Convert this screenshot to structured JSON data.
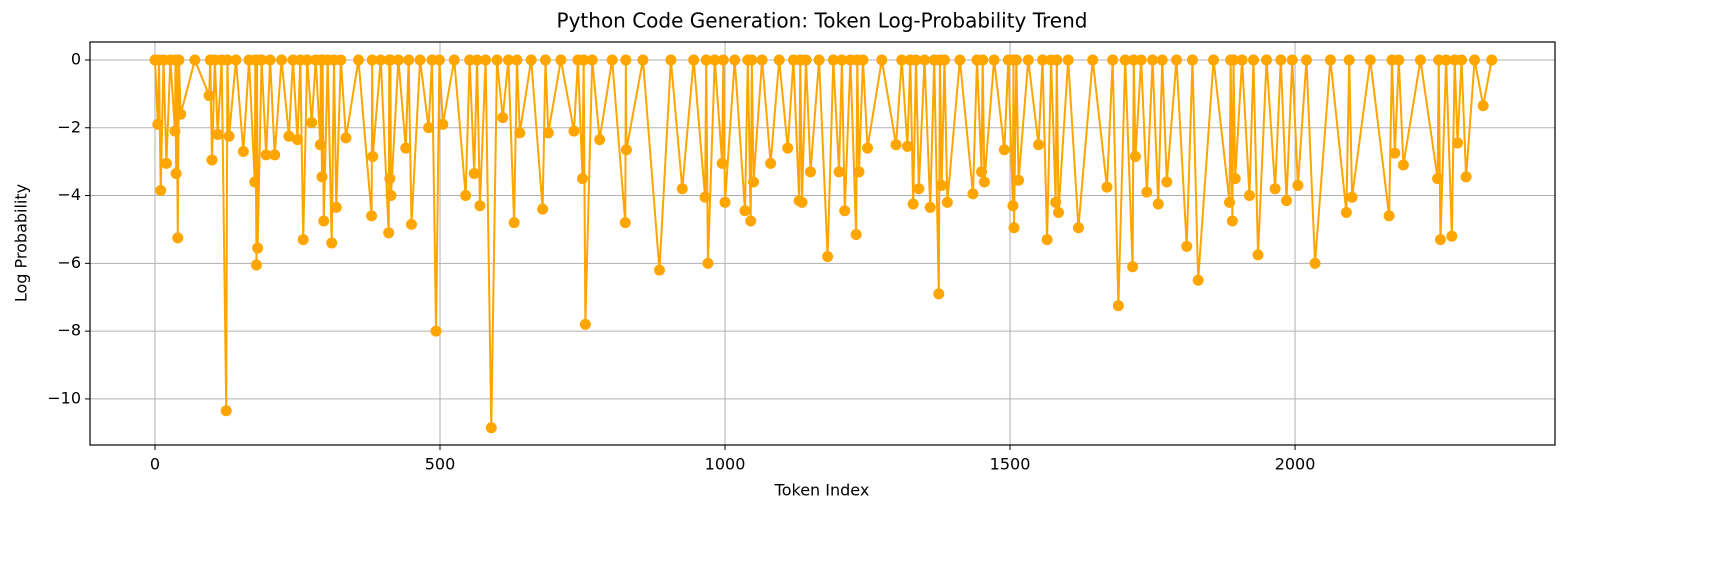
{
  "chart_data": {
    "type": "line",
    "title": "Python Code Generation: Token Log-Probability Trend",
    "xlabel": "Token Index",
    "ylabel": "Log Probability",
    "xlim": [
      -114,
      2456
    ],
    "ylim": [
      -11.36,
      0.53
    ],
    "xticks": [
      0,
      500,
      1000,
      1500,
      2000
    ],
    "yticks": [
      {
        "value": -10,
        "label": "−10"
      },
      {
        "value": -8,
        "label": "−8"
      },
      {
        "value": -6,
        "label": "−6"
      },
      {
        "value": -4,
        "label": "−4"
      },
      {
        "value": -2,
        "label": "−2"
      },
      0
    ],
    "grid": true,
    "markers": true,
    "series": [
      {
        "color": "#ffa500",
        "x": [
          0,
          5,
          7,
          10,
          15,
          20,
          27,
          35,
          36,
          37,
          38,
          40,
          42,
          45,
          70,
          95,
          97,
          100,
          105,
          110,
          117,
          125,
          127,
          130,
          142,
          155,
          165,
          175,
          176,
          178,
          179,
          180,
          187,
          195,
          202,
          210,
          222,
          235,
          242,
          250,
          255,
          260,
          267,
          275,
          282,
          290,
          291,
          293,
          294,
          296,
          303,
          310,
          314,
          318,
          326,
          335,
          357,
          380,
          381,
          382,
          396,
          410,
          411,
          412,
          413,
          414,
          427,
          440,
          445,
          450,
          465,
          480,
          486,
          493,
          499,
          505,
          525,
          545,
          552,
          560,
          565,
          570,
          580,
          590,
          600,
          610,
          620,
          630,
          635,
          640,
          660,
          680,
          685,
          690,
          712,
          735,
          742,
          750,
          752,
          755,
          767,
          780,
          802,
          825,
          826,
          827,
          856,
          885,
          905,
          925,
          945,
          965,
          967,
          970,
          982,
          995,
          997,
          1000,
          1017,
          1035,
          1040,
          1045,
          1047,
          1050,
          1065,
          1080,
          1095,
          1110,
          1120,
          1130,
          1132,
          1135,
          1142,
          1150,
          1165,
          1180,
          1190,
          1200,
          1205,
          1210,
          1220,
          1230,
          1232,
          1235,
          1242,
          1250,
          1275,
          1300,
          1310,
          1320,
          1325,
          1330,
          1335,
          1340,
          1350,
          1360,
          1367,
          1375,
          1377,
          1380,
          1385,
          1390,
          1412,
          1435,
          1442,
          1450,
          1452,
          1455,
          1472,
          1490,
          1497,
          1505,
          1506,
          1507,
          1511,
          1515,
          1532,
          1550,
          1557,
          1565,
          1572,
          1580,
          1582,
          1585,
          1602,
          1620,
          1645,
          1670,
          1680,
          1690,
          1702,
          1715,
          1717,
          1720,
          1730,
          1740,
          1750,
          1760,
          1767,
          1775,
          1792,
          1810,
          1820,
          1830,
          1857,
          1885,
          1887,
          1890,
          1892,
          1895,
          1907,
          1920,
          1927,
          1935,
          1950,
          1965,
          1975,
          1985,
          1995,
          2005,
          2020,
          2035,
          2062,
          2090,
          2095,
          2100,
          2132,
          2165,
          2170,
          2175,
          2182,
          2190,
          2220,
          2250,
          2252,
          2255,
          2265,
          2275,
          2280,
          2285,
          2292,
          2300,
          2315,
          2330,
          2345
        ],
        "values": [
          0,
          -1.9,
          0,
          -3.85,
          0,
          -3.05,
          0,
          -2.1,
          0,
          -3.35,
          0,
          -5.25,
          0,
          -1.6,
          0,
          -1.05,
          0,
          -2.95,
          0,
          -2.2,
          0,
          -10.35,
          0,
          -2.25,
          0,
          -2.7,
          0,
          -3.6,
          0,
          -6.05,
          0,
          -5.55,
          0,
          -2.8,
          0,
          -2.8,
          0,
          -2.25,
          0,
          -2.35,
          0,
          -5.3,
          0,
          -1.85,
          0,
          -2.5,
          0,
          -3.45,
          0,
          -4.75,
          0,
          -5.4,
          0,
          -4.35,
          0,
          -2.3,
          0,
          -4.6,
          0,
          -2.85,
          0,
          -5.1,
          0,
          -3.5,
          0,
          -4.0,
          0,
          -2.6,
          0,
          -4.85,
          0,
          -2.0,
          0,
          -8.0,
          0,
          -1.9,
          0,
          -4.0,
          0,
          -3.35,
          0,
          -4.3,
          0,
          -10.85,
          0,
          -1.7,
          0,
          -4.8,
          0,
          -2.15,
          0,
          -4.4,
          0,
          -2.15,
          0,
          -2.1,
          0,
          -3.5,
          0,
          -7.8,
          0,
          -2.35,
          0,
          -4.8,
          0,
          -2.65,
          0,
          -6.2,
          0,
          -3.8,
          0,
          -4.05,
          0,
          -6.0,
          0,
          -3.05,
          0,
          -4.2,
          0,
          -4.45,
          0,
          -4.75,
          0,
          -3.6,
          0,
          -3.05,
          0,
          -2.6,
          0,
          -4.15,
          0,
          -4.2,
          0,
          -3.3,
          0,
          -5.8,
          0,
          -3.3,
          0,
          -4.45,
          0,
          -5.15,
          0,
          -3.3,
          0,
          -2.6,
          0,
          -2.5,
          0,
          -2.55,
          0,
          -4.25,
          0,
          -3.8,
          0,
          -4.35,
          0,
          -6.9,
          0,
          -3.7,
          0,
          -4.2,
          0,
          -3.95,
          0,
          -3.3,
          0,
          -3.6,
          0,
          -2.65,
          0,
          -4.3,
          0,
          -4.95,
          0,
          -3.55,
          0,
          -2.5,
          0,
          -5.3,
          0,
          -4.2,
          0,
          -4.5,
          0,
          -4.95,
          0,
          -3.75,
          0,
          -7.25,
          0,
          -6.1,
          0,
          -2.85,
          0,
          -3.9,
          0,
          -4.25,
          0,
          -3.6,
          0,
          -5.5,
          0,
          -6.5,
          0,
          -4.2,
          0,
          -4.75,
          0,
          -3.5,
          0,
          -4.0,
          0,
          -5.75,
          0,
          -3.8,
          0,
          -4.15,
          0,
          -3.7,
          0,
          -6.0,
          0,
          -4.5,
          0,
          -4.05,
          0,
          -4.6,
          0,
          -2.75,
          0,
          -3.1,
          0,
          -3.5,
          0,
          -5.3,
          0,
          -5.2,
          0,
          -2.45,
          0,
          -3.45,
          0,
          -1.35,
          0
        ]
      }
    ]
  }
}
